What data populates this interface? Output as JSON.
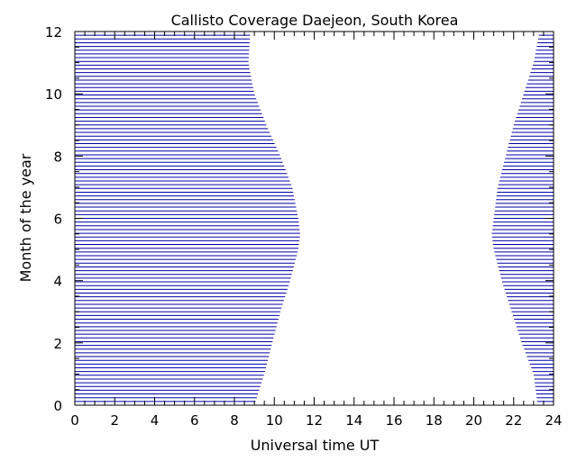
{
  "chart_data": {
    "type": "area",
    "title": "Callisto Coverage Daejeon, South Korea",
    "xlabel": "Universal time UT",
    "ylabel": "Month of the year",
    "xlim": [
      0,
      24
    ],
    "ylim": [
      0,
      12
    ],
    "x_ticks": [
      "0",
      "2",
      "4",
      "6",
      "8",
      "10",
      "12",
      "14",
      "16",
      "18",
      "20",
      "22",
      "24"
    ],
    "y_ticks": [
      "0",
      "2",
      "4",
      "6",
      "8",
      "10",
      "12"
    ],
    "line_color": "#0000aa",
    "band_spacing_month": 0.12,
    "series": [
      {
        "band": "left",
        "x_start": 0,
        "months": [
          0,
          1,
          2,
          3,
          4,
          5,
          5.5,
          6,
          7,
          8,
          9,
          10,
          11,
          12
        ],
        "x_end": [
          9.0,
          9.5,
          9.9,
          10.3,
          10.8,
          11.2,
          11.3,
          11.2,
          10.9,
          10.3,
          9.6,
          9.0,
          8.7,
          8.8
        ]
      },
      {
        "band": "right",
        "x_end": 24,
        "months": [
          0,
          1,
          2,
          3,
          4,
          5,
          5.5,
          6,
          7,
          8,
          9,
          10,
          11,
          12
        ],
        "x_start": [
          23.2,
          23.0,
          22.4,
          21.9,
          21.4,
          21.0,
          20.9,
          21.0,
          21.2,
          21.6,
          22.0,
          22.5,
          23.0,
          23.3
        ]
      }
    ]
  }
}
